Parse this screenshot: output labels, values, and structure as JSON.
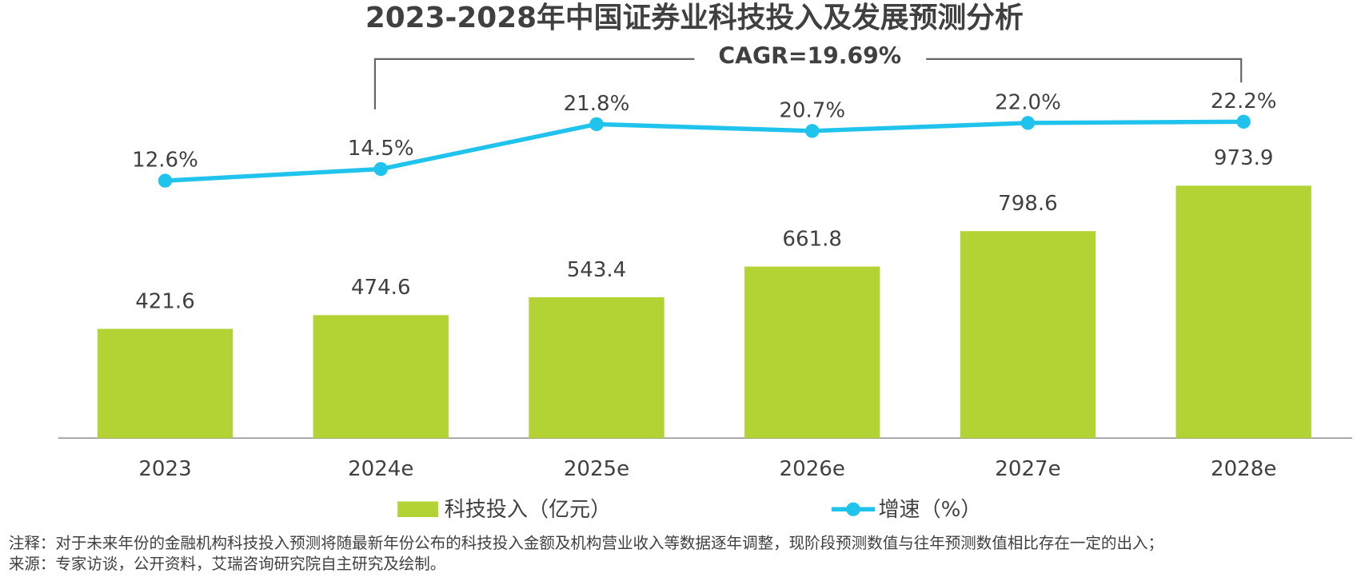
{
  "chart_data": {
    "type": "bar",
    "title": "2023-2028年中国证券业科技投入及发展预测分析",
    "annotation": "CAGR=19.69%",
    "categories": [
      "2023",
      "2024e",
      "2025e",
      "2026e",
      "2027e",
      "2028e"
    ],
    "series": [
      {
        "name": "科技投入（亿元）",
        "color": "#b3d334",
        "values": [
          421.6,
          474.6,
          543.4,
          661.8,
          798.6,
          973.9
        ]
      },
      {
        "name": "增速（%）",
        "type": "line",
        "axis": "y2",
        "color": "#1fc3ec",
        "values": [
          12.6,
          14.5,
          21.8,
          20.7,
          22.0,
          22.2
        ],
        "value_labels": [
          "12.6%",
          "14.5%",
          "21.8%",
          "20.7%",
          "22.0%",
          "22.2%"
        ]
      }
    ],
    "ylim": [
      0,
      1690
    ],
    "y2lim": [
      -29.3,
      42
    ],
    "note": "注释：对于未来年份的金融机构科技投入预测将随最新年份公布的科技投入金额及机构营业收入等数据逐年调整，现阶段预测数值与往年预测数值相比存在一定的出入；",
    "source": "来源：专家访谈，公开资料，艾瑞咨询研究院自主研究及绘制。"
  }
}
